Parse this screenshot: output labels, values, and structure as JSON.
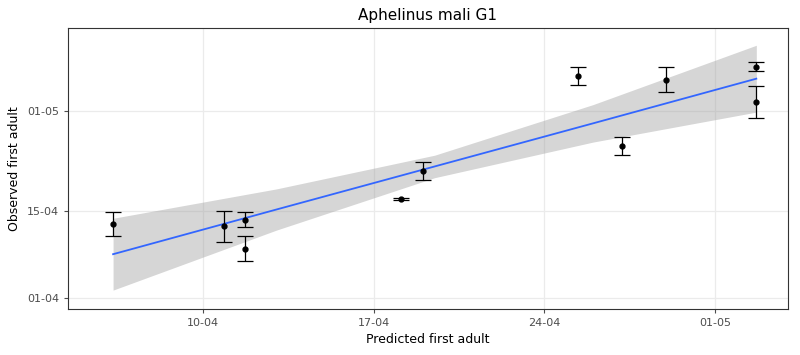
{
  "chart_data": {
    "type": "scatter",
    "title": "Aphelinus mali G1",
    "x_label": "Predicted first adult",
    "y_label": "Observed first adult",
    "x": [
      96.3,
      100.85,
      101.7,
      101.7,
      108.1,
      109.0,
      115.4,
      117.2,
      119.0,
      122.7,
      122.7
    ],
    "values": [
      102.9,
      102.5,
      103.6,
      98.9,
      106.9,
      111.4,
      126.6,
      115.4,
      126.0,
      128.1,
      122.4
    ],
    "error": [
      1.95,
      2.5,
      1.25,
      2.0,
      0.1,
      1.4,
      1.4,
      1.45,
      2.0,
      0.8,
      2.5
    ],
    "color": "#000000",
    "fit": {
      "x": [
        96.3,
        103,
        109.5,
        116,
        122.7
      ],
      "values": [
        98.05,
        105.2,
        112.1,
        119.0,
        126.15
      ],
      "lower": [
        92.3,
        101.9,
        110.3,
        116.0,
        120.8
      ],
      "upper": [
        103.8,
        108.5,
        113.9,
        122.0,
        131.5
      ],
      "color": "#3366FF"
    },
    "xlim": [
      94.45,
      124.0
    ],
    "xticks": [
      {
        "value": 100,
        "label": "10-04"
      },
      {
        "value": 107,
        "label": "17-04"
      },
      {
        "value": 114,
        "label": "24-04"
      },
      {
        "value": 121,
        "label": "01-05"
      }
    ],
    "ylim": [
      89.3,
      134.2
    ],
    "yticks": [
      {
        "value": 91,
        "label": "01-04"
      },
      {
        "value": 105,
        "label": "15-04"
      },
      {
        "value": 121,
        "label": "01-05"
      }
    ],
    "grid": true
  }
}
